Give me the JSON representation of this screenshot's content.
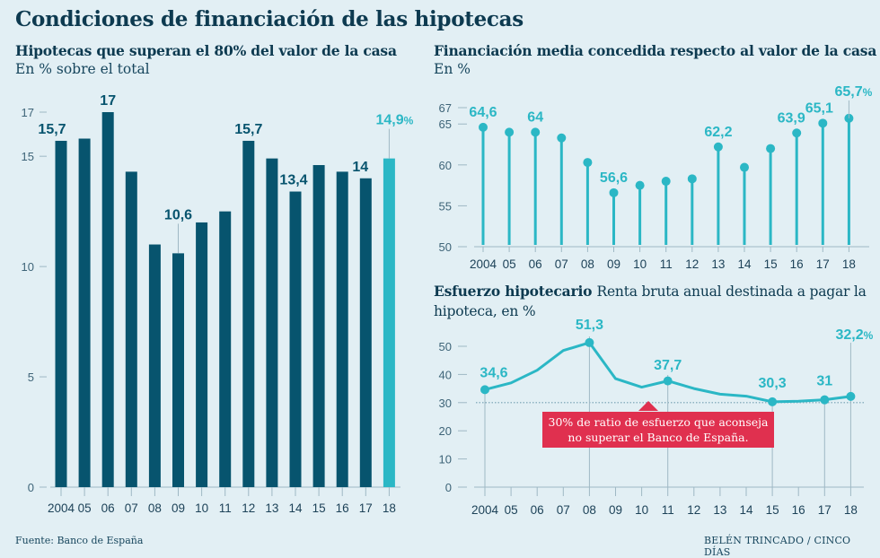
{
  "title": "Condiciones de financiación de las hipotecas",
  "footer": {
    "source": "Fuente: Banco de España",
    "credit": "BELÉN TRINCADO / CINCO DÍAS"
  },
  "colors": {
    "dark_bar": "#07546e",
    "highlight": "#2bb7c5",
    "navy_text": "#0d3a50",
    "red_annotation": "#e0304f",
    "background": "#e2eff4"
  },
  "chart_data": [
    {
      "type": "bar",
      "title": "Hipotecas que superan el 80% del valor de la casa",
      "subtitle": "En % sobre el total",
      "categories": [
        "2004",
        "05",
        "06",
        "07",
        "08",
        "09",
        "10",
        "11",
        "12",
        "13",
        "14",
        "15",
        "16",
        "17",
        "18"
      ],
      "values": [
        15.7,
        15.8,
        17,
        14.3,
        11.0,
        10.6,
        12.0,
        12.5,
        15.7,
        14.9,
        13.4,
        14.6,
        14.3,
        14,
        14.9
      ],
      "highlight_index": 14,
      "yticks": [
        0,
        5,
        10,
        15,
        17
      ],
      "ylim": [
        0,
        17
      ],
      "data_labels": [
        {
          "index": 0,
          "text": "15,7"
        },
        {
          "index": 2,
          "text": "17"
        },
        {
          "index": 5,
          "text": "10,6"
        },
        {
          "index": 8,
          "text": "15,7"
        },
        {
          "index": 10,
          "text": "13,4"
        },
        {
          "index": 13,
          "text": "14"
        },
        {
          "index": 14,
          "text": "14,9",
          "suffix": "%"
        }
      ],
      "xlabel": "",
      "ylabel": "",
      "grid": false,
      "legend": "none"
    },
    {
      "type": "scatter",
      "style": "lollipop",
      "title": "Financiación media concedida respecto al valor de la casa",
      "subtitle": "En %",
      "categories": [
        "2004",
        "05",
        "06",
        "07",
        "08",
        "09",
        "10",
        "11",
        "12",
        "13",
        "14",
        "15",
        "16",
        "17",
        "18"
      ],
      "values": [
        64.6,
        64.0,
        64,
        63.3,
        60.3,
        56.6,
        57.5,
        58.0,
        58.3,
        62.2,
        59.7,
        62.0,
        63.9,
        65.1,
        65.7
      ],
      "yticks": [
        50,
        55,
        60,
        65,
        67
      ],
      "ylim": [
        50,
        67
      ],
      "data_labels": [
        {
          "index": 0,
          "text": "64,6"
        },
        {
          "index": 2,
          "text": "64"
        },
        {
          "index": 5,
          "text": "56,6"
        },
        {
          "index": 9,
          "text": "62,2"
        },
        {
          "index": 12,
          "text": "63,9"
        },
        {
          "index": 13,
          "text": "65,1"
        },
        {
          "index": 14,
          "text": "65,7",
          "suffix": "%"
        }
      ],
      "xlabel": "",
      "ylabel": "",
      "grid": false,
      "legend": "none"
    },
    {
      "type": "line",
      "title": "Esfuerzo hipotecario",
      "subtitle": "Renta bruta anual destinada a pagar la hipoteca, en %",
      "categories": [
        "2004",
        "05",
        "06",
        "07",
        "08",
        "09",
        "10",
        "11",
        "12",
        "13",
        "14",
        "15",
        "16",
        "17",
        "18"
      ],
      "values": [
        34.6,
        37.0,
        41.5,
        48.5,
        51.3,
        38.5,
        35.5,
        37.7,
        35.0,
        33.0,
        32.3,
        30.3,
        30.5,
        31,
        32.2
      ],
      "yticks": [
        0,
        10,
        20,
        30,
        40,
        50
      ],
      "red_yticks": [
        30,
        40,
        50
      ],
      "ylim": [
        0,
        50
      ],
      "reference_line": {
        "value": 30,
        "style": "dotted"
      },
      "annotation": "30% de ratio de esfuerzo que aconseja no superar el Banco de España.",
      "data_labels": [
        {
          "index": 0,
          "text": "34,6"
        },
        {
          "index": 4,
          "text": "51,3"
        },
        {
          "index": 7,
          "text": "37,7"
        },
        {
          "index": 11,
          "text": "30,3"
        },
        {
          "index": 13,
          "text": "31"
        },
        {
          "index": 14,
          "text": "32,2",
          "suffix": "%"
        }
      ],
      "xlabel": "",
      "ylabel": "",
      "grid": false,
      "legend": "none"
    }
  ]
}
